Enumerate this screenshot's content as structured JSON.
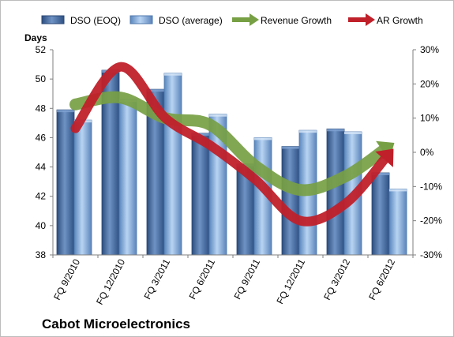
{
  "chart_data": {
    "type": "bar",
    "company": "Cabot Microelectronics",
    "ylabel": "Days",
    "categories": [
      "FQ 9/2010",
      "FQ 12/2010",
      "FQ 3/2011",
      "FQ 6/2011",
      "FQ 9/2011",
      "FQ 12/2011",
      "FQ 3/2012",
      "FQ 6/2012"
    ],
    "ylim": [
      38,
      52
    ],
    "yticks": [
      "38",
      "40",
      "42",
      "44",
      "46",
      "48",
      "50",
      "52"
    ],
    "y2lim": [
      -30,
      30
    ],
    "y2ticks": [
      "-30%",
      "-20%",
      "-10%",
      "0%",
      "10%",
      "20%",
      "30%"
    ],
    "legend_position": "top",
    "grid": false,
    "series": [
      {
        "name": "DSO (EOQ)",
        "type": "bar",
        "color": "#4a6fa5",
        "values": [
          47.9,
          50.6,
          49.3,
          46.3,
          44.2,
          45.4,
          46.6,
          43.6
        ]
      },
      {
        "name": "DSO (average)",
        "type": "bar",
        "color": "#8cb4e2",
        "values": [
          47.2,
          48.6,
          50.4,
          47.6,
          46.0,
          46.5,
          46.4,
          42.5
        ]
      },
      {
        "name": "Revenue Growth",
        "type": "line",
        "axis": "secondary",
        "color": "#77a044",
        "values": [
          14,
          16,
          10,
          8,
          -4,
          -11,
          -7,
          2
        ]
      },
      {
        "name": "AR Growth",
        "type": "line",
        "axis": "secondary",
        "color": "#c0202a",
        "values": [
          7,
          25,
          10,
          2,
          -8,
          -20,
          -15,
          0
        ]
      }
    ]
  }
}
